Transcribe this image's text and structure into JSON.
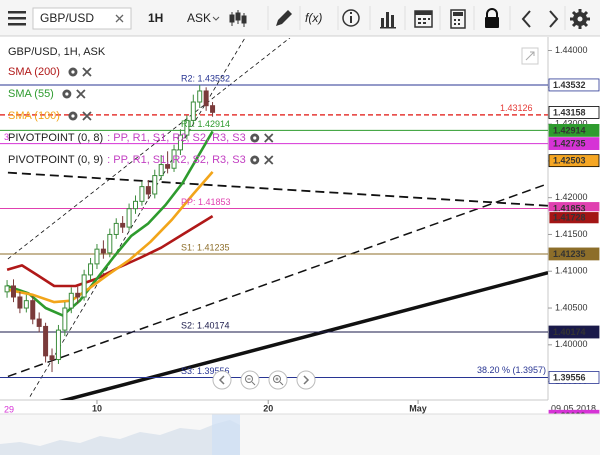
{
  "toolbar": {
    "symbol": "GBP/USD",
    "timeframe": "1H",
    "side": "ASK",
    "function": "f(x)"
  },
  "chart_data": {
    "type": "candlestick",
    "title": "GBP/USD, 1H, ASK",
    "x": [
      -4.2,
      -3.9,
      -3.6,
      -3.3,
      -3.0,
      -2.7,
      -2.4,
      -2.1,
      -1.8,
      -1.5,
      -1.2,
      -0.9,
      -0.6,
      -0.3,
      0.0,
      0.3,
      0.6,
      0.9,
      1.2,
      1.5,
      1.8,
      2.1,
      2.4,
      2.7,
      3.0,
      3.3,
      3.6,
      3.9,
      4.2,
      4.5,
      4.8,
      5.1,
      5.4
    ],
    "open": [
      1.4072,
      1.408,
      1.4065,
      1.405,
      1.406,
      1.4035,
      1.4025,
      1.3985,
      1.398,
      1.402,
      1.405,
      1.407,
      1.4065,
      1.4095,
      1.411,
      1.413,
      1.4125,
      1.415,
      1.4165,
      1.416,
      1.4185,
      1.4195,
      1.4215,
      1.4205,
      1.423,
      1.4245,
      1.424,
      1.4265,
      1.4285,
      1.4305,
      1.433,
      1.4345,
      1.4325
    ],
    "high": [
      1.4088,
      1.4089,
      1.4072,
      1.4068,
      1.4066,
      1.4044,
      1.403,
      1.3995,
      1.4027,
      1.4058,
      1.4078,
      1.4079,
      1.4102,
      1.4118,
      1.4137,
      1.4142,
      1.4158,
      1.4172,
      1.4175,
      1.4192,
      1.4203,
      1.4222,
      1.4224,
      1.4238,
      1.4258,
      1.4263,
      1.4272,
      1.4293,
      1.4312,
      1.434,
      1.4353,
      1.435,
      1.433
    ],
    "low": [
      1.4064,
      1.4058,
      1.4043,
      1.4044,
      1.4028,
      1.4017,
      1.3976,
      1.3963,
      1.3974,
      1.4012,
      1.4043,
      1.4056,
      1.406,
      1.4088,
      1.4103,
      1.4117,
      1.4119,
      1.4144,
      1.4152,
      1.4155,
      1.4178,
      1.4189,
      1.4198,
      1.4199,
      1.4224,
      1.4233,
      1.4235,
      1.4258,
      1.4279,
      1.4298,
      1.4322,
      1.4318,
      1.431
    ],
    "close": [
      1.408,
      1.4065,
      1.405,
      1.406,
      1.4035,
      1.4025,
      1.3985,
      1.398,
      1.402,
      1.405,
      1.407,
      1.4065,
      1.4095,
      1.411,
      1.413,
      1.4125,
      1.415,
      1.4165,
      1.416,
      1.4185,
      1.4195,
      1.4215,
      1.4205,
      1.423,
      1.4245,
      1.424,
      1.4265,
      1.4285,
      1.4305,
      1.433,
      1.4345,
      1.4325,
      1.4316
    ],
    "up_color": "#3c8c3c",
    "down_color": "#7a3a3a",
    "xlim": [
      -4.53,
      21.07
    ],
    "xticks": [
      {
        "value": 0,
        "label": "10"
      },
      {
        "value": 8,
        "label": "20"
      },
      {
        "value": 15,
        "label": "May"
      }
    ],
    "date_label": "09.05.2018",
    "ylim": [
      1.3925,
      1.4417
    ],
    "yticks": [
      {
        "value": 1.395,
        "label": "1.39500"
      },
      {
        "value": 1.4,
        "label": "1.40000"
      },
      {
        "value": 1.405,
        "label": "1.40500"
      },
      {
        "value": 1.41,
        "label": "1.41000"
      },
      {
        "value": 1.415,
        "label": "1.41500"
      },
      {
        "value": 1.42,
        "label": "1.42000"
      },
      {
        "value": 1.425,
        "label": "1.42500"
      },
      {
        "value": 1.43,
        "label": "1.43000"
      },
      {
        "value": 1.435,
        "label": "1.43500"
      },
      {
        "value": 1.44,
        "label": "1.44000"
      }
    ],
    "indicators": [
      {
        "name": "SMA (200)",
        "color": "#b01818",
        "x": [
          -4.2,
          -3.5,
          -2.8,
          -2.0,
          -1.0,
          0.0,
          1.0,
          2.0,
          3.0,
          4.0,
          5.4
        ],
        "values": [
          1.4102,
          1.4108,
          1.4095,
          1.408,
          1.408,
          1.409,
          1.4105,
          1.4118,
          1.4132,
          1.415,
          1.4175
        ]
      },
      {
        "name": "SMA (55)",
        "color": "#2e9b2e",
        "x": [
          -4.2,
          -3.2,
          -2.4,
          -1.6,
          -0.8,
          0.0,
          0.8,
          1.6,
          2.4,
          3.2,
          4.0,
          4.7,
          5.4
        ],
        "values": [
          1.408,
          1.407,
          1.405,
          1.404,
          1.406,
          1.409,
          1.412,
          1.4148,
          1.4165,
          1.419,
          1.422,
          1.4255,
          1.429
        ]
      },
      {
        "name": "SMA (100)",
        "color": "#f2a51a",
        "x": [
          -4.2,
          -3.0,
          -2.0,
          -1.2,
          -0.3,
          0.5,
          1.5,
          2.5,
          3.5,
          4.5,
          5.4
        ],
        "values": [
          1.4075,
          1.4068,
          1.4058,
          1.406,
          1.4078,
          1.4095,
          1.4115,
          1.414,
          1.417,
          1.4205,
          1.4235
        ]
      }
    ],
    "pivot_legends": [
      {
        "name": "PIVOTPOINT (0, 8)",
        "levels": ": PP, R1, S1, R2, S2, R3, S3"
      },
      {
        "name": "PIVOTPOINT (0, 9)",
        "levels": ": PP, R1, S1, R2, S2, R3, S3"
      }
    ],
    "pivot_legend_color": "#c23fc2",
    "levels": [
      {
        "value": 1.43532,
        "label": "R2: 1.43532",
        "label_position": "middle",
        "color": "#283593",
        "box": "#ffffff",
        "box_text": "#283593"
      },
      {
        "value": 1.43126,
        "label": "1.43126",
        "label_position": "right",
        "color": "#e53935",
        "dash": true
      },
      {
        "value": 1.43158,
        "box": "#ffffff",
        "box_text": "#000000"
      },
      {
        "value": 1.42914,
        "label": "R1: 1.42914",
        "label_position": "middle",
        "color": "#2e9b2e",
        "box": "#2e9b2e",
        "box_text": "#ffffff"
      },
      {
        "value": 1.42735,
        "label": "3",
        "label_position": "left",
        "color": "#d633d6",
        "box": "#d633d6",
        "box_text": "#ffffff"
      },
      {
        "value": 1.42503,
        "box": "#f5a623",
        "box_text": "#000000"
      },
      {
        "value": 1.41853,
        "label": "PP: 1.41853",
        "label_position": "middle",
        "color": "#e040b0",
        "box": "#e040b0",
        "box_text": "#ffffff"
      },
      {
        "value": 1.41728,
        "box": "#a31515",
        "box_text": "#ffffff"
      },
      {
        "value": 1.41235,
        "label": "S1: 1.41235",
        "label_position": "middle",
        "color": "#8d6e2a",
        "box": "#8d6e2a",
        "box_text": "#ffffff"
      },
      {
        "value": 1.40174,
        "label": "S2: 1.40174",
        "label_position": "middle",
        "color": "#1a1a4a",
        "box": "#1a1a4a",
        "box_text": "#ffffff"
      },
      {
        "value": 1.39029,
        "label": "29",
        "label_position": "left",
        "color": "#d633d6",
        "box": "#d633d6",
        "box_text": "#ffffff"
      },
      {
        "value": 1.39556,
        "label": "S3: 1.39556",
        "label_position": "middle",
        "color": "#283593",
        "box": "#ffffff",
        "box_text": "#283593"
      }
    ],
    "annotations": [
      {
        "text": "38.20 % (1.3957)",
        "value": 1.3957,
        "color": "#283593"
      }
    ],
    "trendlines": [
      {
        "x": [
          -1.73,
          21.07
        ],
        "values": [
          1.3923,
          1.4098
        ],
        "width": 3.5,
        "dash": false
      },
      {
        "x": [
          -4.16,
          21.07
        ],
        "values": [
          1.3957,
          1.4219
        ],
        "width": 1.5,
        "dash": true
      },
      {
        "x": [
          -4.16,
          21.07
        ],
        "values": [
          1.4234,
          1.4189
        ],
        "width": 1.8,
        "dash": true
      },
      {
        "x": [
          -3.13,
          6.92
        ],
        "values": [
          1.39296,
          1.44174
        ],
        "width": 0.8,
        "dash": true
      },
      {
        "x": [
          -4.16,
          9.02
        ],
        "values": [
          1.41168,
          1.44174
        ],
        "width": 0.8,
        "dash": true
      }
    ]
  }
}
